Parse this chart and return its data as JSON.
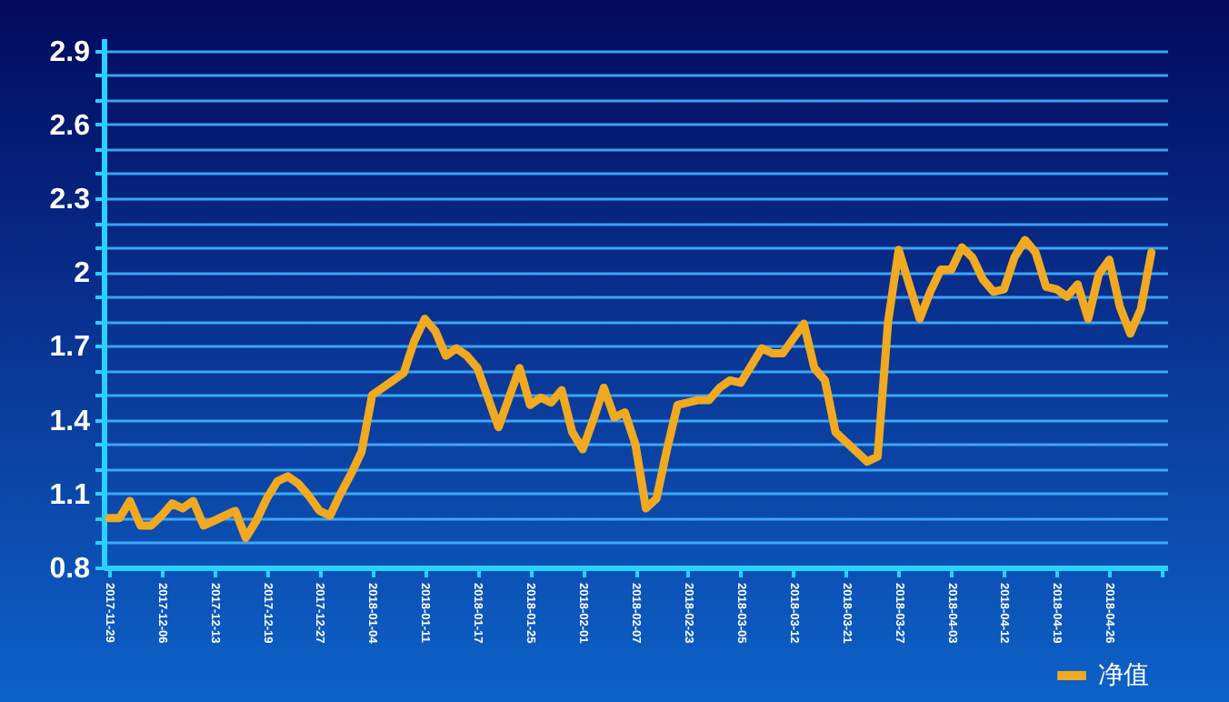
{
  "chart_data": {
    "type": "line",
    "categories": [
      "2017-11-29",
      null,
      null,
      null,
      null,
      "2017-12-06",
      null,
      null,
      null,
      null,
      "2017-12-13",
      null,
      null,
      null,
      null,
      "2017-12-19",
      null,
      null,
      null,
      null,
      "2017-12-27",
      null,
      null,
      null,
      null,
      "2018-01-04",
      null,
      null,
      null,
      null,
      "2018-01-11",
      null,
      null,
      null,
      null,
      "2018-01-17",
      null,
      null,
      null,
      null,
      "2018-01-25",
      null,
      null,
      null,
      null,
      "2018-02-01",
      null,
      null,
      null,
      null,
      "2018-02-07",
      null,
      null,
      null,
      null,
      "2018-02-23",
      null,
      null,
      null,
      null,
      "2018-03-05",
      null,
      null,
      null,
      null,
      "2018-03-12",
      null,
      null,
      null,
      null,
      "2018-03-21",
      null,
      null,
      null,
      null,
      "2018-03-27",
      null,
      null,
      null,
      null,
      "2018-04-03",
      null,
      null,
      null,
      null,
      "2018-04-12",
      null,
      null,
      null,
      null,
      "2018-04-19",
      null,
      null,
      null,
      null,
      "2018-04-26",
      null,
      null,
      null,
      null,
      null
    ],
    "series": [
      {
        "name": "净值",
        "color": "#f0a920",
        "values": [
          1.0,
          1.0,
          1.07,
          0.97,
          0.97,
          1.01,
          1.06,
          1.04,
          1.07,
          0.97,
          0.99,
          1.01,
          1.03,
          0.92,
          0.99,
          1.08,
          1.15,
          1.17,
          1.14,
          1.09,
          1.03,
          1.01,
          1.1,
          1.18,
          1.27,
          1.5,
          1.53,
          1.56,
          1.59,
          1.72,
          1.81,
          1.76,
          1.66,
          1.69,
          1.66,
          1.61,
          1.49,
          1.37,
          1.49,
          1.61,
          1.46,
          1.49,
          1.47,
          1.52,
          1.35,
          1.28,
          1.4,
          1.53,
          1.41,
          1.43,
          1.3,
          1.04,
          1.08,
          1.28,
          1.46,
          1.47,
          1.48,
          1.48,
          1.53,
          1.56,
          1.55,
          1.62,
          1.69,
          1.67,
          1.67,
          1.73,
          1.79,
          1.61,
          1.56,
          1.35,
          1.31,
          1.27,
          1.23,
          1.25,
          1.8,
          2.09,
          1.95,
          1.81,
          1.92,
          2.01,
          2.01,
          2.1,
          2.06,
          1.97,
          1.92,
          1.93,
          2.06,
          2.13,
          2.08,
          1.94,
          1.93,
          1.9,
          1.95,
          1.81,
          1.99,
          2.05,
          1.86,
          1.75,
          1.85,
          2.08,
          null
        ]
      }
    ],
    "ylim": [
      0.8,
      2.95
    ],
    "yticks": [
      0.8,
      {
        "value": 0.9,
        "label": null
      },
      {
        "value": 1.0,
        "label": null
      },
      1.1,
      {
        "value": 1.2,
        "label": null
      },
      {
        "value": 1.3,
        "label": null
      },
      1.4,
      {
        "value": 1.5,
        "label": null
      },
      {
        "value": 1.6,
        "label": null
      },
      1.7,
      {
        "value": 1.8,
        "label": null
      },
      {
        "value": 1.9,
        "label": null
      },
      2,
      {
        "value": 2.1,
        "label": null
      },
      {
        "value": 2.2,
        "label": null
      },
      2.3,
      {
        "value": 2.4,
        "label": null
      },
      {
        "value": 2.5,
        "label": null
      },
      2.6,
      {
        "value": 2.7,
        "label": null
      },
      {
        "value": 2.8,
        "label": null
      },
      2.9
    ],
    "grid": "y",
    "legend": "bottom right",
    "marker": "none",
    "line_style": "solid"
  }
}
